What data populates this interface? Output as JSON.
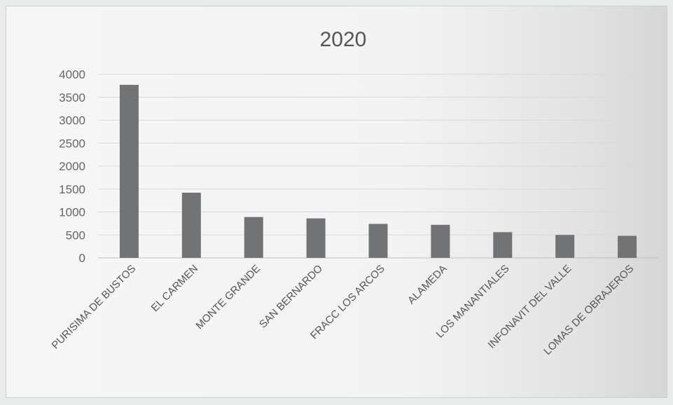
{
  "chart_data": {
    "type": "bar",
    "title": "2020",
    "xlabel": "",
    "ylabel": "",
    "categories": [
      "PURISIMA DE BUSTOS",
      "EL CARMEN",
      "MONTE GRANDE",
      "SAN BERNARDO",
      "FRACC LOS ARCOS",
      "ALAMEDA",
      "LOS MANANTIALES",
      "INFONAVIT DEL VALLE",
      "LOMAS DE OBRAJEROS"
    ],
    "values": [
      3770,
      1420,
      890,
      860,
      740,
      720,
      560,
      500,
      480
    ],
    "ylim": [
      0,
      4000
    ],
    "yticks": [
      "0",
      "500",
      "1000",
      "1500",
      "2000",
      "2500",
      "3000",
      "3500",
      "4000"
    ],
    "grid": true,
    "legend": "none",
    "bar_color": "#717375"
  }
}
